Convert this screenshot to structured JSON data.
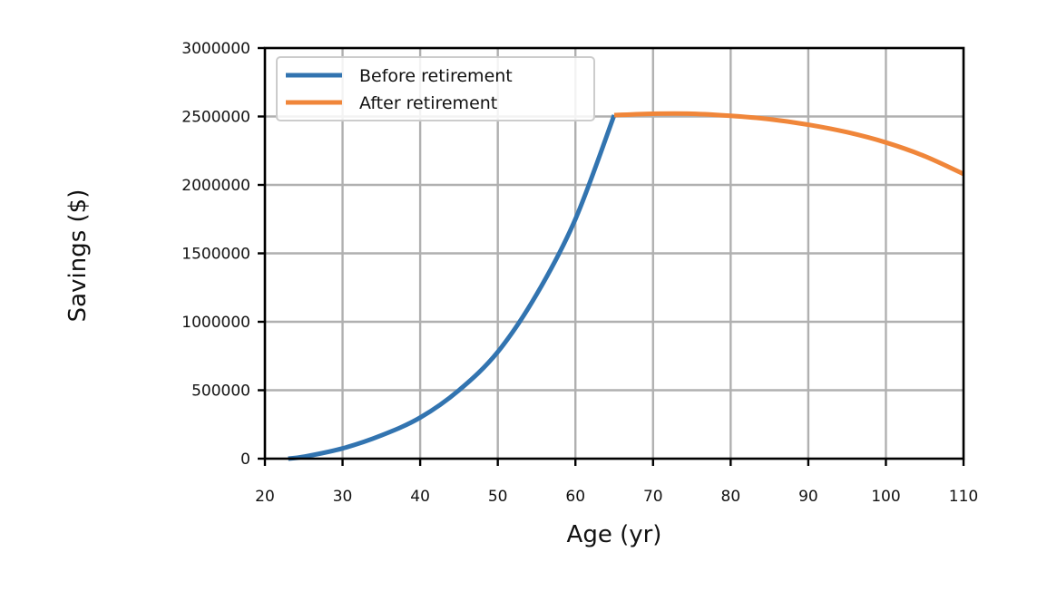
{
  "chart_data": {
    "type": "line",
    "title": "",
    "xlabel": "Age (yr)",
    "ylabel": "Savings ($)",
    "xlim": [
      20,
      110
    ],
    "ylim": [
      0,
      3000000
    ],
    "xticks": [
      20,
      30,
      40,
      50,
      60,
      70,
      80,
      90,
      100,
      110
    ],
    "yticks": [
      0,
      500000,
      1000000,
      1500000,
      2000000,
      2500000,
      3000000
    ],
    "xtick_labels": [
      "20",
      "30",
      "40",
      "50",
      "60",
      "70",
      "80",
      "90",
      "100",
      "110"
    ],
    "ytick_labels": [
      "0",
      "500000",
      "1000000",
      "1500000",
      "2000000",
      "2500000",
      "3000000"
    ],
    "grid": true,
    "legend_position": "top-left",
    "series": [
      {
        "name": "Before retirement",
        "color": "#3274b0",
        "x": [
          23,
          25,
          30,
          35,
          40,
          45,
          50,
          55,
          60,
          65
        ],
        "y": [
          0,
          14000,
          75000,
          170000,
          300000,
          500000,
          780000,
          1200000,
          1750000,
          2510000
        ]
      },
      {
        "name": "After retirement",
        "color": "#f0863a",
        "x": [
          65,
          70,
          75,
          80,
          85,
          90,
          95,
          100,
          105,
          110
        ],
        "y": [
          2510000,
          2520000,
          2520000,
          2505000,
          2480000,
          2440000,
          2385000,
          2310000,
          2210000,
          2080000
        ]
      }
    ]
  }
}
